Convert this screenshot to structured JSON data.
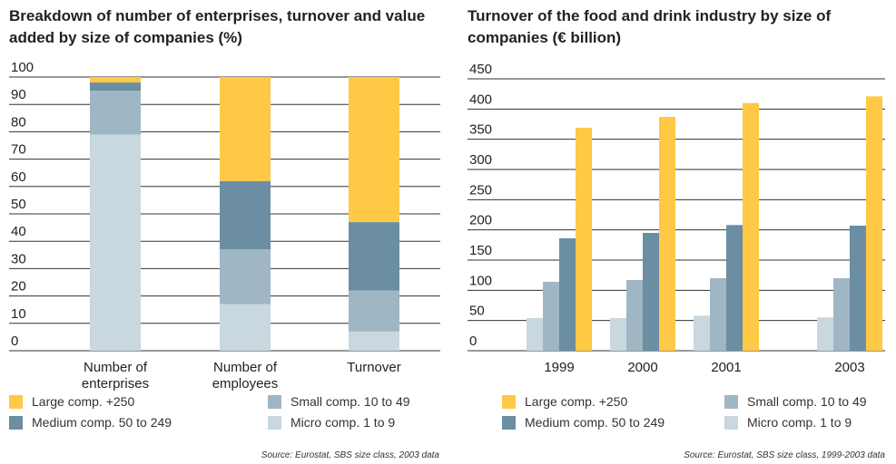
{
  "chart_data": [
    {
      "type": "stacked_bar",
      "title": "Breakdown of number of enterprises, turnover and value added by size of companies (%)",
      "categories": [
        "Number of enterprises",
        "Number of employees",
        "Turnover"
      ],
      "series": [
        {
          "name": "Large comp. +250",
          "color": "#ffc845",
          "values": [
            2,
            38,
            53
          ]
        },
        {
          "name": "Medium comp. 50 to 249",
          "color": "#6b8ea3",
          "values": [
            3,
            25,
            25
          ]
        },
        {
          "name": "Small comp. 10 to 49",
          "color": "#9fb6c5",
          "values": [
            16,
            20,
            15
          ]
        },
        {
          "name": "Micro comp. 1 to 9",
          "color": "#c9d7df",
          "values": [
            79,
            17,
            7
          ]
        }
      ],
      "ylim": [
        0,
        100
      ],
      "yticks": [
        0,
        10,
        20,
        30,
        40,
        50,
        60,
        70,
        80,
        90,
        100
      ],
      "grid": true,
      "source": "Source: Eurostat, SBS size class, 2003 data"
    },
    {
      "type": "bar",
      "title": "Turnover of the food and drink industry by size of companies (€ billion)",
      "categories": [
        "1999",
        "2000",
        "2001",
        "2003"
      ],
      "series": [
        {
          "name": "Large comp. +250",
          "color": "#ffc845",
          "values": [
            369,
            387,
            410,
            421
          ]
        },
        {
          "name": "Medium comp. 50 to 249",
          "color": "#6b8ea3",
          "values": [
            186,
            195,
            208,
            207
          ]
        },
        {
          "name": "Small comp. 10 to 49",
          "color": "#9fb6c5",
          "values": [
            114,
            117,
            120,
            120
          ]
        },
        {
          "name": "Micro comp. 1 to 9",
          "color": "#c9d7df",
          "values": [
            54,
            54,
            58,
            55
          ]
        }
      ],
      "ylim": [
        0,
        450
      ],
      "yticks": [
        0,
        50,
        100,
        150,
        200,
        250,
        300,
        350,
        400,
        450
      ],
      "grid": true,
      "source": "Source: Eurostat, SBS size class, 1999-2003 data"
    }
  ]
}
